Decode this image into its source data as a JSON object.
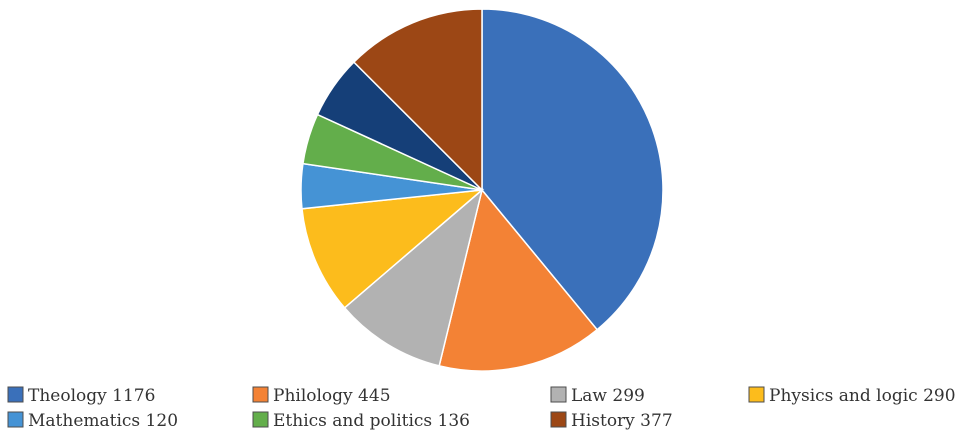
{
  "chart_data": {
    "type": "pie",
    "title": "",
    "legend_position": "bottom",
    "slices": [
      {
        "label": "Theology 1176",
        "value": 1176,
        "color": "#3a70ba"
      },
      {
        "label": "Philology 445",
        "value": 445,
        "color": "#f38235"
      },
      {
        "label": "Law 299",
        "value": 299,
        "color": "#b2b2b2"
      },
      {
        "label": "Physics and logic 290",
        "value": 290,
        "color": "#fcbc1c"
      },
      {
        "label": "Mathematics 120",
        "value": 120,
        "color": "#4593d5"
      },
      {
        "label": "Ethics and politics 136",
        "value": 136,
        "color": "#63ae4b"
      },
      {
        "label": "",
        "value": 170,
        "color": "#153f78"
      },
      {
        "label": "History 377",
        "value": 377,
        "color": "#9c4715"
      }
    ]
  }
}
